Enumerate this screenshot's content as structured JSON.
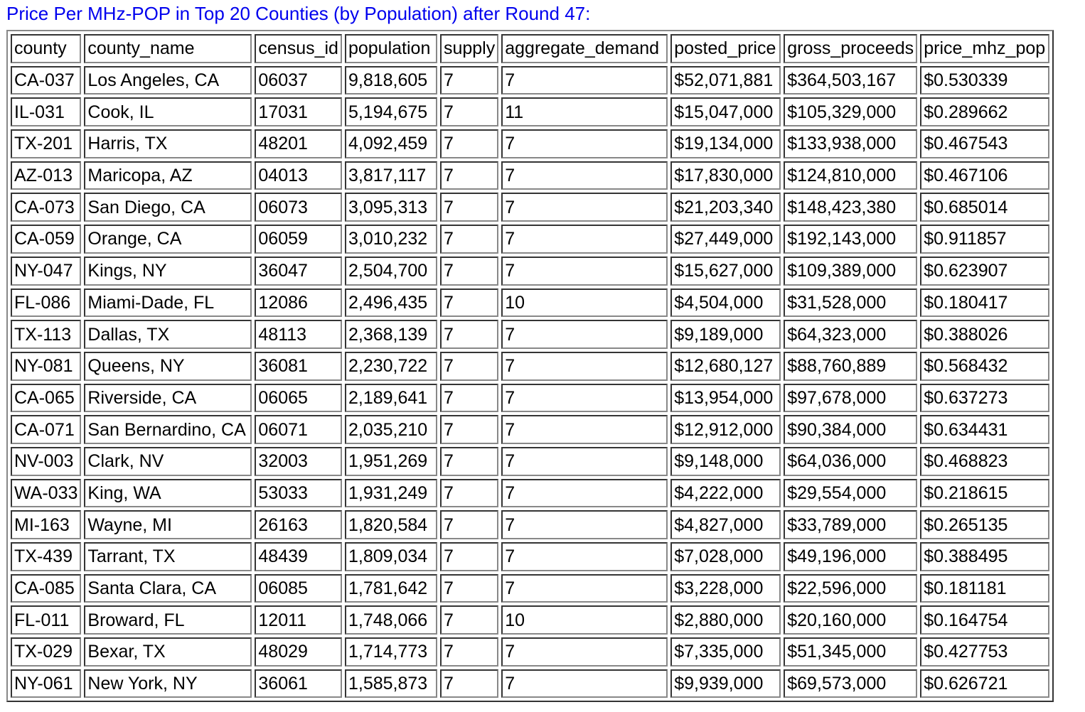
{
  "title": "Price Per MHz-POP in Top 20 Counties (by Population) after Round 47:",
  "table": {
    "columns": [
      "county",
      "county_name",
      "census_id",
      "population",
      "supply",
      "aggregate_demand",
      "posted_price",
      "gross_proceeds",
      "price_mhz_pop"
    ],
    "rows": [
      [
        "CA-037",
        "Los Angeles, CA",
        "06037",
        "9,818,605",
        "7",
        "7",
        "$52,071,881",
        "$364,503,167",
        "$0.530339"
      ],
      [
        "IL-031",
        "Cook, IL",
        "17031",
        "5,194,675",
        "7",
        "11",
        "$15,047,000",
        "$105,329,000",
        "$0.289662"
      ],
      [
        "TX-201",
        "Harris, TX",
        "48201",
        "4,092,459",
        "7",
        "7",
        "$19,134,000",
        "$133,938,000",
        "$0.467543"
      ],
      [
        "AZ-013",
        "Maricopa, AZ",
        "04013",
        "3,817,117",
        "7",
        "7",
        "$17,830,000",
        "$124,810,000",
        "$0.467106"
      ],
      [
        "CA-073",
        "San Diego, CA",
        "06073",
        "3,095,313",
        "7",
        "7",
        "$21,203,340",
        "$148,423,380",
        "$0.685014"
      ],
      [
        "CA-059",
        "Orange, CA",
        "06059",
        "3,010,232",
        "7",
        "7",
        "$27,449,000",
        "$192,143,000",
        "$0.911857"
      ],
      [
        "NY-047",
        "Kings, NY",
        "36047",
        "2,504,700",
        "7",
        "7",
        "$15,627,000",
        "$109,389,000",
        "$0.623907"
      ],
      [
        "FL-086",
        "Miami-Dade, FL",
        "12086",
        "2,496,435",
        "7",
        "10",
        "$4,504,000",
        "$31,528,000",
        "$0.180417"
      ],
      [
        "TX-113",
        "Dallas, TX",
        "48113",
        "2,368,139",
        "7",
        "7",
        "$9,189,000",
        "$64,323,000",
        "$0.388026"
      ],
      [
        "NY-081",
        "Queens, NY",
        "36081",
        "2,230,722",
        "7",
        "7",
        "$12,680,127",
        "$88,760,889",
        "$0.568432"
      ],
      [
        "CA-065",
        "Riverside, CA",
        "06065",
        "2,189,641",
        "7",
        "7",
        "$13,954,000",
        "$97,678,000",
        "$0.637273"
      ],
      [
        "CA-071",
        "San Bernardino, CA",
        "06071",
        "2,035,210",
        "7",
        "7",
        "$12,912,000",
        "$90,384,000",
        "$0.634431"
      ],
      [
        "NV-003",
        "Clark, NV",
        "32003",
        "1,951,269",
        "7",
        "7",
        "$9,148,000",
        "$64,036,000",
        "$0.468823"
      ],
      [
        "WA-033",
        "King, WA",
        "53033",
        "1,931,249",
        "7",
        "7",
        "$4,222,000",
        "$29,554,000",
        "$0.218615"
      ],
      [
        "MI-163",
        "Wayne, MI",
        "26163",
        "1,820,584",
        "7",
        "7",
        "$4,827,000",
        "$33,789,000",
        "$0.265135"
      ],
      [
        "TX-439",
        "Tarrant, TX",
        "48439",
        "1,809,034",
        "7",
        "7",
        "$7,028,000",
        "$49,196,000",
        "$0.388495"
      ],
      [
        "CA-085",
        "Santa Clara, CA",
        "06085",
        "1,781,642",
        "7",
        "7",
        "$3,228,000",
        "$22,596,000",
        "$0.181181"
      ],
      [
        "FL-011",
        "Broward, FL",
        "12011",
        "1,748,066",
        "7",
        "10",
        "$2,880,000",
        "$20,160,000",
        "$0.164754"
      ],
      [
        "TX-029",
        "Bexar, TX",
        "48029",
        "1,714,773",
        "7",
        "7",
        "$7,335,000",
        "$51,345,000",
        "$0.427753"
      ],
      [
        "NY-061",
        "New York, NY",
        "36061",
        "1,585,873",
        "7",
        "7",
        "$9,939,000",
        "$69,573,000",
        "$0.626721"
      ]
    ]
  },
  "colors": {
    "title": "#0000ee",
    "border": "#888888"
  }
}
